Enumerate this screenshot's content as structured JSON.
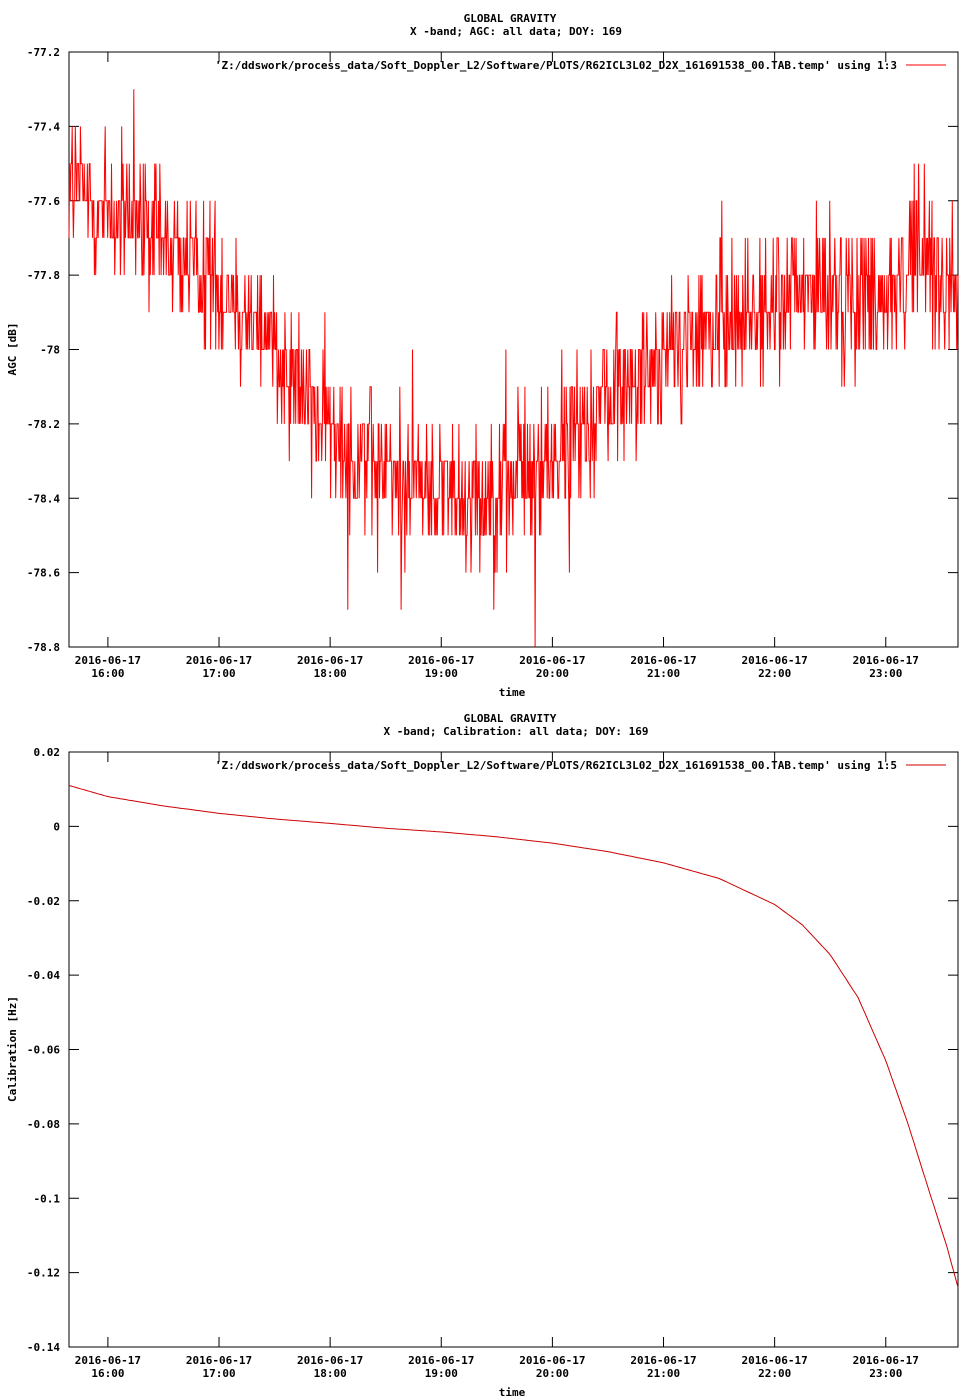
{
  "chart_data": [
    {
      "type": "line",
      "title": "GLOBAL GRAVITY",
      "subtitle": "X -band; AGC: all data; DOY: 169",
      "xlabel": "time",
      "ylabel": "AGC [dB]",
      "ylim": [
        -78.8,
        -77.2
      ],
      "xlim": [
        15.65,
        23.65
      ],
      "yticks": [
        -77.2,
        -77.4,
        -77.6,
        -77.8,
        -78,
        -78.2,
        -78.4,
        -78.6,
        -78.8
      ],
      "ytick_labels": [
        "-77.2",
        "-77.4",
        "-77.6",
        "-77.8",
        "-78",
        "-78.2",
        "-78.4",
        "-78.6",
        "-78.8"
      ],
      "xticks": [
        16,
        17,
        18,
        19,
        20,
        21,
        22,
        23
      ],
      "xtick_dates": [
        "2016-06-17",
        "2016-06-17",
        "2016-06-17",
        "2016-06-17",
        "2016-06-17",
        "2016-06-17",
        "2016-06-17",
        "2016-06-17"
      ],
      "xtick_times": [
        "16:00",
        "17:00",
        "18:00",
        "19:00",
        "20:00",
        "21:00",
        "22:00",
        "23:00"
      ],
      "grid": false,
      "legend": "top-right",
      "series": [
        {
          "name": "'Z:/ddswork/process_data/Soft_Doppler_L2/Software/PLOTS/R62ICL3L02_D2X_161691538_00.TAB.temp' using 1:3",
          "color": "#ff0000",
          "style": "noisy",
          "noise_amplitude": 0.12,
          "x": [
            15.65,
            16.0,
            16.5,
            17.0,
            17.5,
            18.0,
            18.5,
            19.0,
            19.5,
            20.0,
            20.5,
            21.0,
            21.5,
            22.0,
            22.5,
            23.0,
            23.3,
            23.65
          ],
          "y": [
            -77.55,
            -77.62,
            -77.72,
            -77.82,
            -77.97,
            -78.22,
            -78.33,
            -78.37,
            -78.38,
            -78.3,
            -78.12,
            -78.02,
            -77.93,
            -77.87,
            -77.85,
            -77.85,
            -77.75,
            -77.85
          ]
        }
      ]
    },
    {
      "type": "line",
      "title": "GLOBAL GRAVITY",
      "subtitle": "X -band; Calibration: all data; DOY: 169",
      "xlabel": "time",
      "ylabel": "Calibration [Hz]",
      "ylim": [
        -0.14,
        0.02
      ],
      "xlim": [
        15.65,
        23.65
      ],
      "yticks": [
        0.02,
        0,
        -0.02,
        -0.04,
        -0.06,
        -0.08,
        -0.1,
        -0.12,
        -0.14
      ],
      "ytick_labels": [
        "0.02",
        "0",
        "-0.02",
        "-0.04",
        "-0.06",
        "-0.08",
        "-0.1",
        "-0.12",
        "-0.14"
      ],
      "xticks": [
        16,
        17,
        18,
        19,
        20,
        21,
        22,
        23
      ],
      "xtick_dates": [
        "2016-06-17",
        "2016-06-17",
        "2016-06-17",
        "2016-06-17",
        "2016-06-17",
        "2016-06-17",
        "2016-06-17",
        "2016-06-17"
      ],
      "xtick_times": [
        "16:00",
        "17:00",
        "18:00",
        "19:00",
        "20:00",
        "21:00",
        "22:00",
        "23:00"
      ],
      "grid": false,
      "legend": "top-right",
      "series": [
        {
          "name": "'Z:/ddswork/process_data/Soft_Doppler_L2/Software/PLOTS/R62ICL3L02_D2X_161691538_00.TAB.temp' using 1:5",
          "color": "#cc0000",
          "style": "smooth",
          "x": [
            15.65,
            16.0,
            16.5,
            17.0,
            17.5,
            18.0,
            18.5,
            19.0,
            19.5,
            20.0,
            20.5,
            21.0,
            21.5,
            22.0,
            22.25,
            22.5,
            22.75,
            23.0,
            23.2,
            23.4,
            23.55,
            23.65
          ],
          "y": [
            0.011,
            0.008,
            0.0055,
            0.0035,
            0.002,
            0.0008,
            -0.0005,
            -0.0015,
            -0.0028,
            -0.0045,
            -0.0068,
            -0.0098,
            -0.014,
            -0.021,
            -0.0265,
            -0.0345,
            -0.046,
            -0.063,
            -0.08,
            -0.099,
            -0.113,
            -0.124
          ]
        }
      ]
    }
  ]
}
